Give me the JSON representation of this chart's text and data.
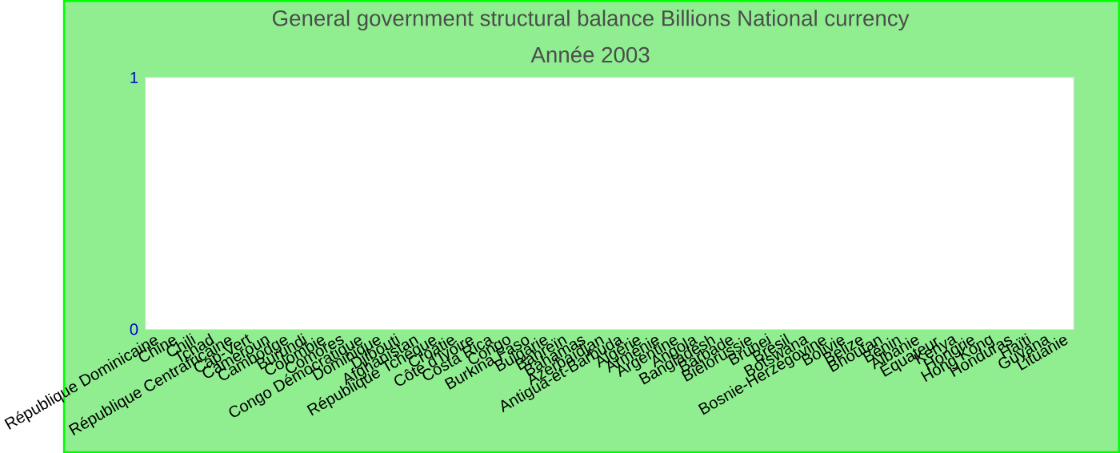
{
  "chart_data": {
    "type": "bar",
    "title": "General government structural balance Billions National currency",
    "subtitle": "Année 2003",
    "categories": [
      "République Dominicaine",
      "Chine",
      "Chili",
      "Tchad",
      "République Centrafricaine",
      "Cap-Vert",
      "Cameroun",
      "Cambodge",
      "Burundi",
      "Colombie",
      "Comores",
      "Congo Démocratique",
      "Dominique",
      "Djibouti",
      "Afghanistan",
      "République Tchèque",
      "Croatie",
      "Côte d'Ivoire",
      "Costa Rica",
      "Congo",
      "Burkina Faso",
      "Bulgarie",
      "Bahreïn",
      "Bahamas",
      "Azerbaïdjan",
      "Antigua-et-Barbuda",
      "Algérie",
      "Arménie",
      "Argentine",
      "Angola",
      "Bangladesh",
      "Barbade",
      "Biélorussie",
      "Brunei",
      "Brésil",
      "Botswana",
      "Bosnie-Herzégovine",
      "Bolivie",
      "Belize",
      "Bhoutan",
      "Bénin",
      "Albanie",
      "Équateur",
      "Kenya",
      "Hongrie",
      "Hong Kong",
      "Honduras",
      "Haïti",
      "Guyana",
      "Lituanie"
    ],
    "values": [
      null,
      null,
      null,
      null,
      null,
      null,
      null,
      null,
      null,
      null,
      null,
      null,
      null,
      null,
      null,
      null,
      null,
      null,
      null,
      null,
      null,
      null,
      null,
      null,
      null,
      null,
      null,
      null,
      null,
      null,
      null,
      null,
      null,
      null,
      null,
      null,
      null,
      null,
      null,
      null,
      null,
      null,
      null,
      null,
      null,
      null,
      null,
      null,
      null,
      null
    ],
    "ylim": [
      0,
      1
    ],
    "yticks": [
      0,
      1
    ]
  }
}
